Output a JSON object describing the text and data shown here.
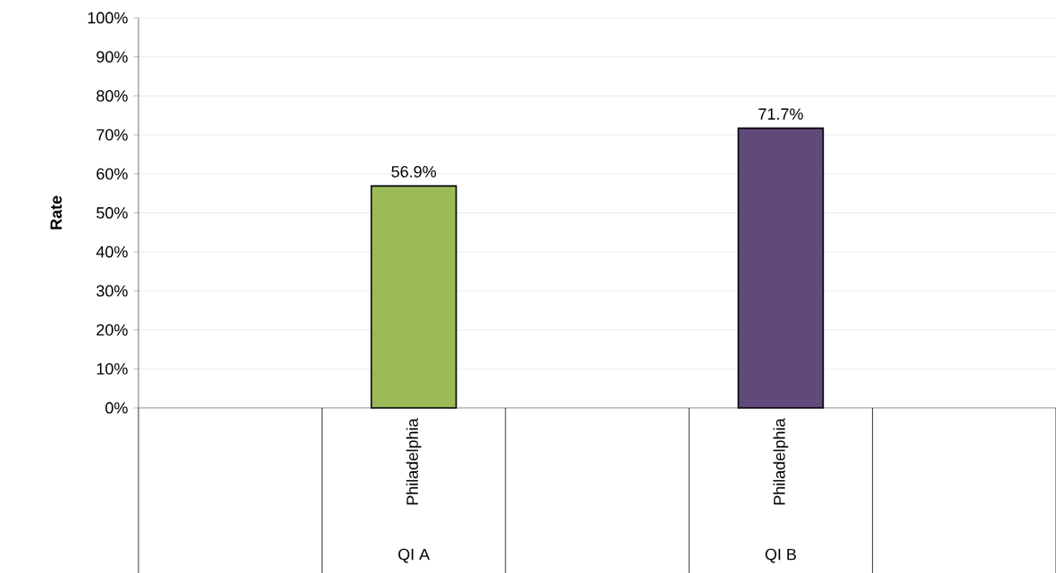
{
  "chart_data": {
    "type": "bar",
    "ylabel": "Rate",
    "categories": [
      null,
      "Philadelphia",
      null,
      "Philadelphia",
      null
    ],
    "values": [
      null,
      56.9,
      null,
      71.7,
      null
    ],
    "colors": [
      null,
      "#9bbb59",
      null,
      "#604a7b",
      null
    ],
    "value_labels": [
      null,
      "56.9%",
      null,
      "71.7%",
      null
    ],
    "annotations": [
      "QI A",
      "QI B"
    ],
    "ylim": [
      0,
      100
    ],
    "yticks": [
      {
        "value": 0,
        "label": "0%"
      },
      {
        "value": 10,
        "label": "10%"
      },
      {
        "value": 20,
        "label": "20%"
      },
      {
        "value": 30,
        "label": "30%"
      },
      {
        "value": 40,
        "label": "40%"
      },
      {
        "value": 50,
        "label": "50%"
      },
      {
        "value": 60,
        "label": "60%"
      },
      {
        "value": 70,
        "label": "70%"
      },
      {
        "value": 80,
        "label": "80%"
      },
      {
        "value": 90,
        "label": "90%"
      },
      {
        "value": 100,
        "label": "100%"
      }
    ],
    "grid": "y"
  }
}
